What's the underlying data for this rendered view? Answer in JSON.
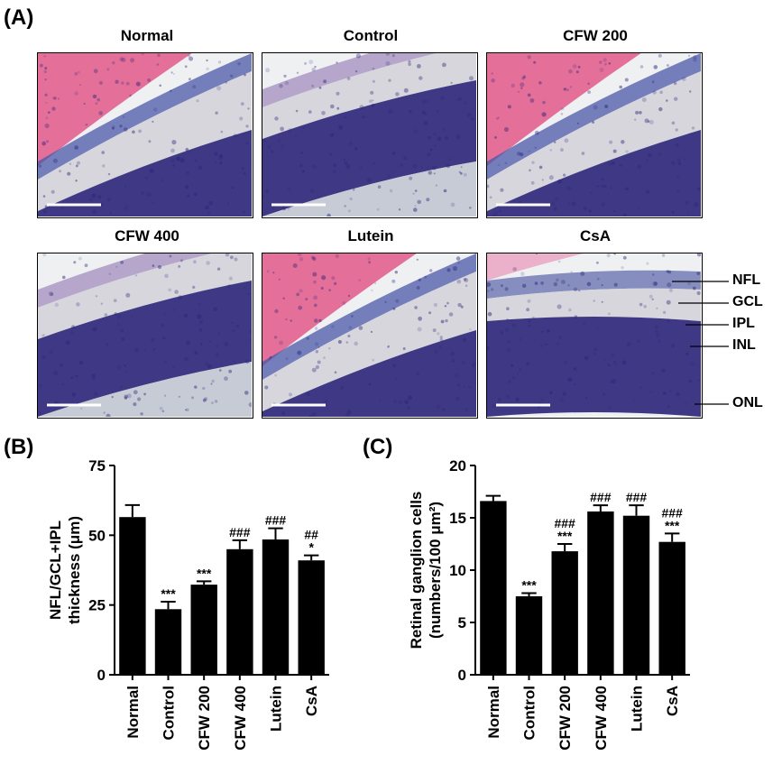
{
  "panels": {
    "A": "(A)",
    "B": "(B)",
    "C": "(C)"
  },
  "micrographs": [
    {
      "title": "Normal",
      "style": "vitreous"
    },
    {
      "title": "Control",
      "style": "thin"
    },
    {
      "title": "CFW 200",
      "style": "vitreous"
    },
    {
      "title": "CFW 400",
      "style": "thin"
    },
    {
      "title": "Lutein",
      "style": "vitreous"
    },
    {
      "title": "CsA",
      "style": "flat"
    }
  ],
  "layer_labels": [
    "NFL",
    "GCL",
    "IPL",
    "INL",
    "ONL"
  ],
  "colors": {
    "eosin": "#e2588a",
    "hematoxylin": "#2b2478",
    "ipl": "#d6d6dc",
    "bar": "#000000"
  },
  "chart_data": [
    {
      "type": "bar",
      "categories": [
        "Normal",
        "Control",
        "CFW 200",
        "CFW 400",
        "Lutein",
        "CsA"
      ],
      "values": [
        56.5,
        23.5,
        32.3,
        45.0,
        48.5,
        41.0
      ],
      "errors": [
        4.3,
        2.7,
        1.2,
        3.2,
        4.0,
        1.8
      ],
      "annotations": [
        "",
        "***",
        "***",
        "###",
        "###",
        "##\n*"
      ],
      "ylabel_lines": [
        "NFL/GCL+IPL",
        "thickness (μm)"
      ],
      "xlabel": "",
      "ylim": [
        0,
        75
      ],
      "yticks": [
        0,
        25,
        50,
        75
      ],
      "grid": false
    },
    {
      "type": "bar",
      "categories": [
        "Normal",
        "Control",
        "CFW 200",
        "CFW 400",
        "Lutein",
        "CsA"
      ],
      "values": [
        16.6,
        7.5,
        11.8,
        15.6,
        15.2,
        12.7
      ],
      "errors": [
        0.5,
        0.3,
        0.7,
        0.6,
        1.0,
        0.8
      ],
      "annotations": [
        "",
        "***",
        "###\n***",
        "###",
        "###",
        "###\n***"
      ],
      "ylabel_lines": [
        "Retinal ganglion cells",
        "(numbers/100 μm²)"
      ],
      "xlabel": "",
      "ylim": [
        0,
        20
      ],
      "yticks": [
        0,
        5,
        10,
        15,
        20
      ],
      "grid": false
    }
  ]
}
